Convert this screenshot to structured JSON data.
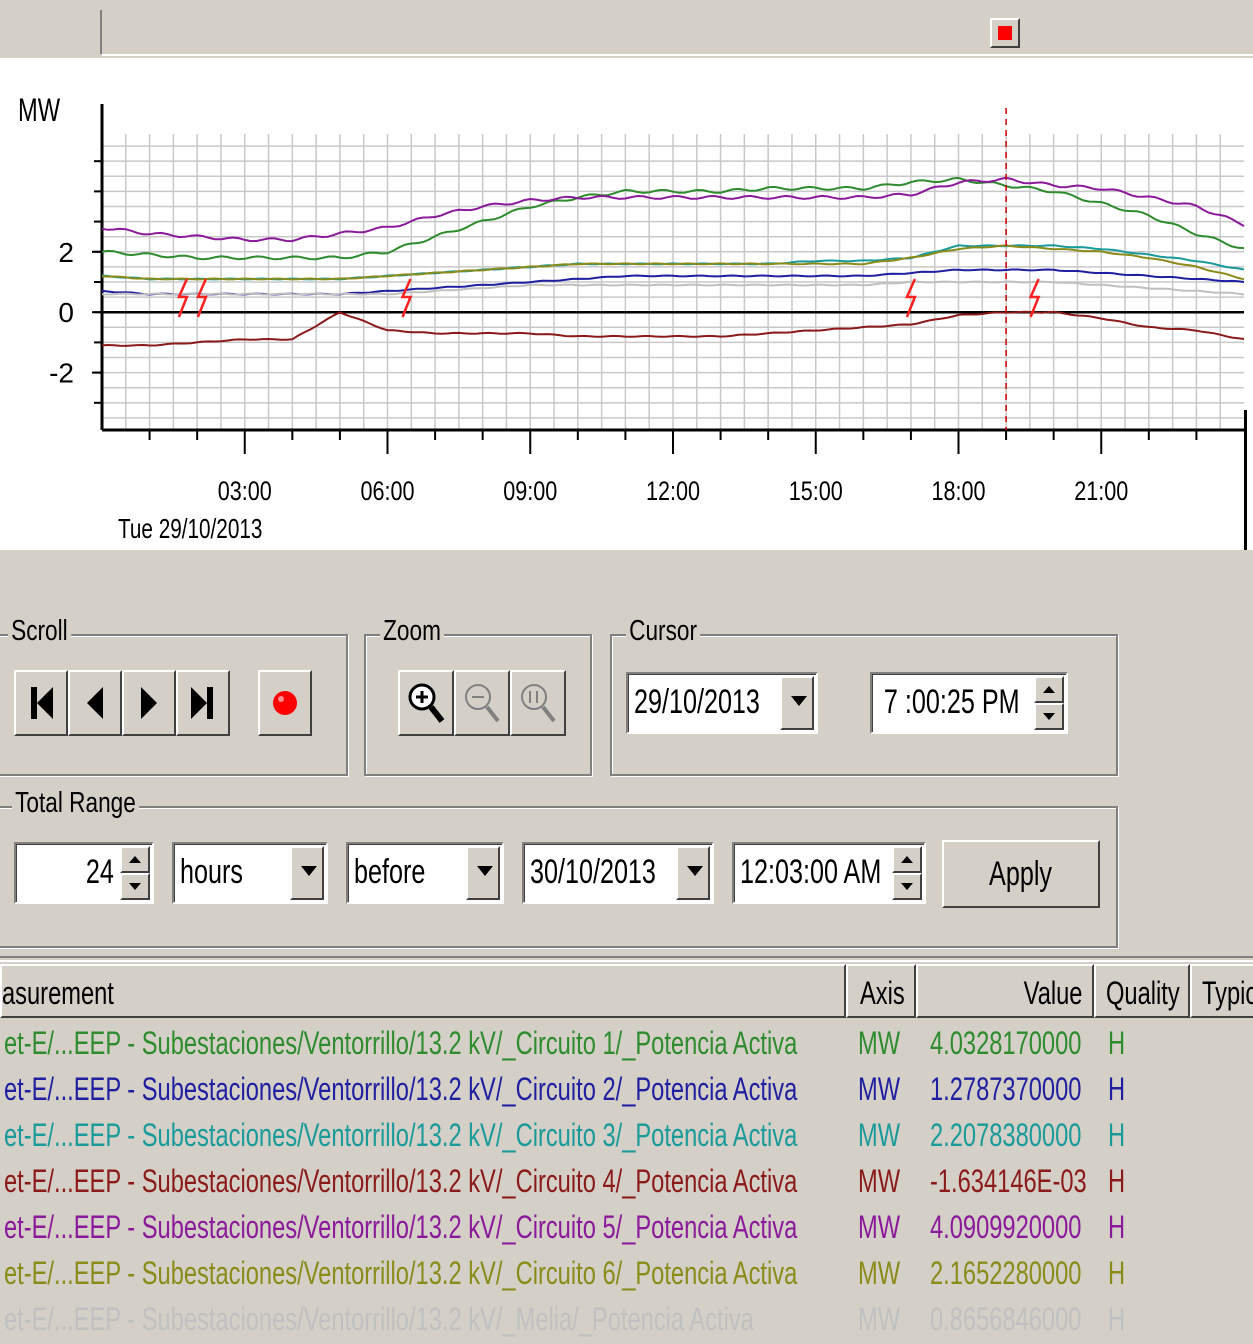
{
  "window": {
    "stop_indicator": "stop-square-icon"
  },
  "chart": {
    "yunit": "MW",
    "date_label": "Tue 29/10/2013",
    "cursor_time": "19:00",
    "colors": {
      "c1": "#2e8b2e",
      "c2": "#1f1fa0",
      "c3": "#1a9a9a",
      "c4": "#8b1a1a",
      "c5": "#8b1a9a",
      "c6": "#8b8b1a",
      "melia": "#c0c0c0",
      "alarm": "#ff2020"
    }
  },
  "chart_data": {
    "type": "line",
    "title": "",
    "xlabel": "Tue 29/10/2013",
    "ylabel": "MW",
    "x_ticks": [
      "03:00",
      "06:00",
      "09:00",
      "12:00",
      "15:00",
      "18:00",
      "21:00"
    ],
    "y_ticks": [
      "2",
      "0",
      "-2"
    ],
    "xlim_hours": [
      0,
      24
    ],
    "ylim": [
      -3.9,
      5.9
    ],
    "grid": true,
    "cursor_x_hours": 19.0,
    "x_hours": [
      0,
      1,
      2,
      3,
      4,
      5,
      6,
      7,
      8,
      9,
      10,
      11,
      12,
      13,
      14,
      15,
      16,
      17,
      18,
      19,
      20,
      21,
      22,
      23,
      24
    ],
    "series": [
      {
        "name": "Circuito 1",
        "color": "#2e8b2e",
        "values": [
          2.0,
          1.9,
          1.8,
          1.8,
          1.8,
          1.8,
          2.0,
          2.5,
          3.0,
          3.5,
          3.8,
          4.0,
          4.0,
          4.0,
          4.1,
          4.1,
          4.1,
          4.3,
          4.4,
          4.2,
          4.0,
          3.6,
          3.2,
          2.6,
          2.1
        ]
      },
      {
        "name": "Circuito 2",
        "color": "#1f1fa0",
        "values": [
          0.7,
          0.6,
          0.6,
          0.6,
          0.6,
          0.6,
          0.7,
          0.8,
          0.9,
          1.0,
          1.1,
          1.2,
          1.2,
          1.2,
          1.2,
          1.2,
          1.2,
          1.3,
          1.4,
          1.4,
          1.4,
          1.3,
          1.2,
          1.1,
          1.0
        ]
      },
      {
        "name": "Circuito 3",
        "color": "#1a9a9a",
        "values": [
          1.2,
          1.1,
          1.1,
          1.1,
          1.1,
          1.1,
          1.2,
          1.3,
          1.4,
          1.5,
          1.6,
          1.6,
          1.6,
          1.6,
          1.6,
          1.7,
          1.7,
          1.8,
          2.2,
          2.2,
          2.2,
          2.1,
          1.9,
          1.7,
          1.4
        ]
      },
      {
        "name": "Circuito 4",
        "color": "#8b1a1a",
        "values": [
          -1.1,
          -1.1,
          -1.0,
          -0.9,
          -0.9,
          0.0,
          -0.6,
          -0.7,
          -0.7,
          -0.7,
          -0.8,
          -0.8,
          -0.8,
          -0.8,
          -0.7,
          -0.6,
          -0.5,
          -0.4,
          -0.1,
          0.0,
          0.0,
          -0.2,
          -0.5,
          -0.6,
          -0.9
        ]
      },
      {
        "name": "Circuito 5",
        "color": "#8b1a9a",
        "values": [
          2.8,
          2.6,
          2.5,
          2.4,
          2.4,
          2.6,
          2.8,
          3.2,
          3.5,
          3.7,
          3.8,
          3.8,
          3.8,
          3.8,
          3.8,
          3.8,
          3.8,
          3.9,
          4.3,
          4.4,
          4.2,
          4.1,
          3.8,
          3.5,
          2.9
        ]
      },
      {
        "name": "Circuito 6",
        "color": "#8b8b1a",
        "values": [
          1.2,
          1.1,
          1.1,
          1.1,
          1.1,
          1.1,
          1.2,
          1.3,
          1.4,
          1.5,
          1.6,
          1.6,
          1.6,
          1.6,
          1.6,
          1.6,
          1.6,
          1.8,
          2.1,
          2.2,
          2.1,
          2.0,
          1.8,
          1.5,
          1.1
        ]
      },
      {
        "name": "Melia",
        "color": "#c0c0c0",
        "values": [
          0.6,
          0.6,
          0.6,
          0.6,
          0.6,
          0.6,
          0.6,
          0.7,
          0.8,
          0.9,
          0.9,
          0.9,
          0.9,
          0.9,
          0.9,
          0.9,
          0.9,
          1.0,
          1.0,
          1.0,
          1.0,
          0.9,
          0.8,
          0.7,
          0.6
        ]
      }
    ]
  },
  "controls": {
    "scroll": {
      "label": "Scroll"
    },
    "zoom": {
      "label": "Zoom"
    },
    "cursor": {
      "label": "Cursor",
      "date": "29/10/2013",
      "time": "7 :00:25 PM"
    },
    "total_range": {
      "label": "Total Range",
      "amount": "24",
      "unit": "hours",
      "direction": "before",
      "date": "30/10/2013",
      "time": "12:03:00 AM",
      "apply": "Apply"
    }
  },
  "table": {
    "headers": {
      "measurement": "asurement",
      "axis": "Axis",
      "value": "Value",
      "quality": "Quality",
      "typical": "Typic"
    },
    "rows": [
      {
        "measurement": "et-E/...EEP - Subestaciones/Ventorrillo/13.2 kV/_Circuito 1/_Potencia Activa",
        "axis": "MW",
        "value": "4.0328170000",
        "quality": "H",
        "color": "#2e8b2e"
      },
      {
        "measurement": "et-E/...EEP - Subestaciones/Ventorrillo/13.2 kV/_Circuito 2/_Potencia Activa",
        "axis": "MW",
        "value": "1.2787370000",
        "quality": "H",
        "color": "#1f1fa0"
      },
      {
        "measurement": "et-E/...EEP - Subestaciones/Ventorrillo/13.2 kV/_Circuito 3/_Potencia Activa",
        "axis": "MW",
        "value": "2.2078380000",
        "quality": "H",
        "color": "#1a9a9a"
      },
      {
        "measurement": "et-E/...EEP - Subestaciones/Ventorrillo/13.2 kV/_Circuito 4/_Potencia Activa",
        "axis": "MW",
        "value": "-1.634146E-03",
        "quality": "H",
        "color": "#8b1a1a"
      },
      {
        "measurement": "et-E/...EEP - Subestaciones/Ventorrillo/13.2 kV/_Circuito 5/_Potencia Activa",
        "axis": "MW",
        "value": "4.0909920000",
        "quality": "H",
        "color": "#8b1a9a"
      },
      {
        "measurement": "et-E/...EEP - Subestaciones/Ventorrillo/13.2 kV/_Circuito 6/_Potencia Activa",
        "axis": "MW",
        "value": "2.1652280000",
        "quality": "H",
        "color": "#8b8b1a"
      },
      {
        "measurement": "et-E/...EEP - Subestaciones/Ventorrillo/13.2 kV/_Melia/_Potencia Activa",
        "axis": "MW",
        "value": "0.8656846000",
        "quality": "H",
        "color": "#c0c0c0"
      }
    ]
  }
}
